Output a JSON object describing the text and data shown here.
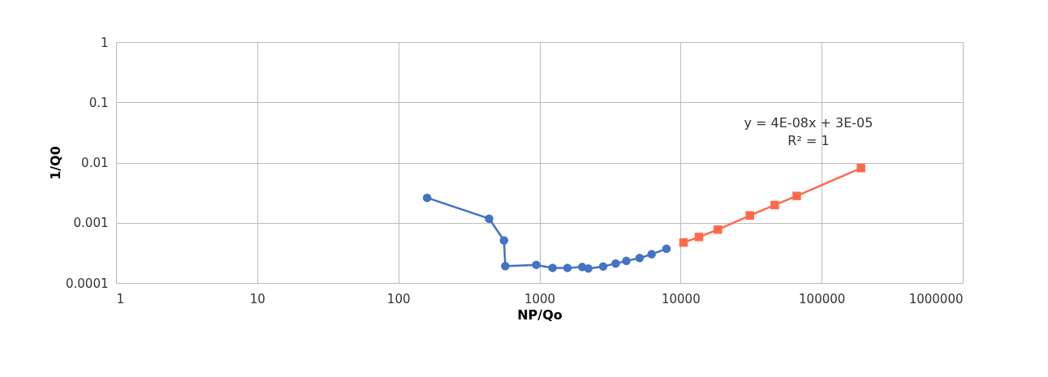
{
  "chart_data": {
    "type": "line",
    "xlabel": "NP/Qo",
    "ylabel": "1/Q0",
    "log": "xy",
    "grid": true,
    "marker": "circle",
    "line_style": "solid",
    "xlim": [
      1,
      1000000
    ],
    "xticks": [
      1,
      10,
      100,
      1000,
      10000,
      100000,
      1000000
    ],
    "ylim": [
      0.0001,
      1
    ],
    "yticks": [
      0.0001,
      0.001,
      0.01,
      0.1,
      1
    ],
    "annotations": [
      "y = 4E-08x + 3E-05",
      "R² = 1"
    ],
    "series": [
      {
        "color": "#4472c4",
        "x": [
          160,
          440,
          561,
          573,
          950,
          1240,
          1580,
          2010,
          2220,
          2830,
          3470,
          4130,
          5130,
          6240,
          7950
        ],
        "values": [
          0.0026,
          0.00117,
          0.00051,
          0.00019,
          0.0002,
          0.000178,
          0.000178,
          0.000184,
          0.000174,
          0.000188,
          0.00021,
          0.000232,
          0.00026,
          0.0003,
          0.00037
        ]
      },
      {
        "color": "#ff6a4a",
        "marker": "square",
        "x": [
          10500,
          13500,
          18400,
          31000,
          46500,
          66600,
          190000
        ],
        "values": [
          0.00047,
          0.00058,
          0.00077,
          0.00132,
          0.00197,
          0.00279,
          0.0081
        ]
      }
    ]
  }
}
